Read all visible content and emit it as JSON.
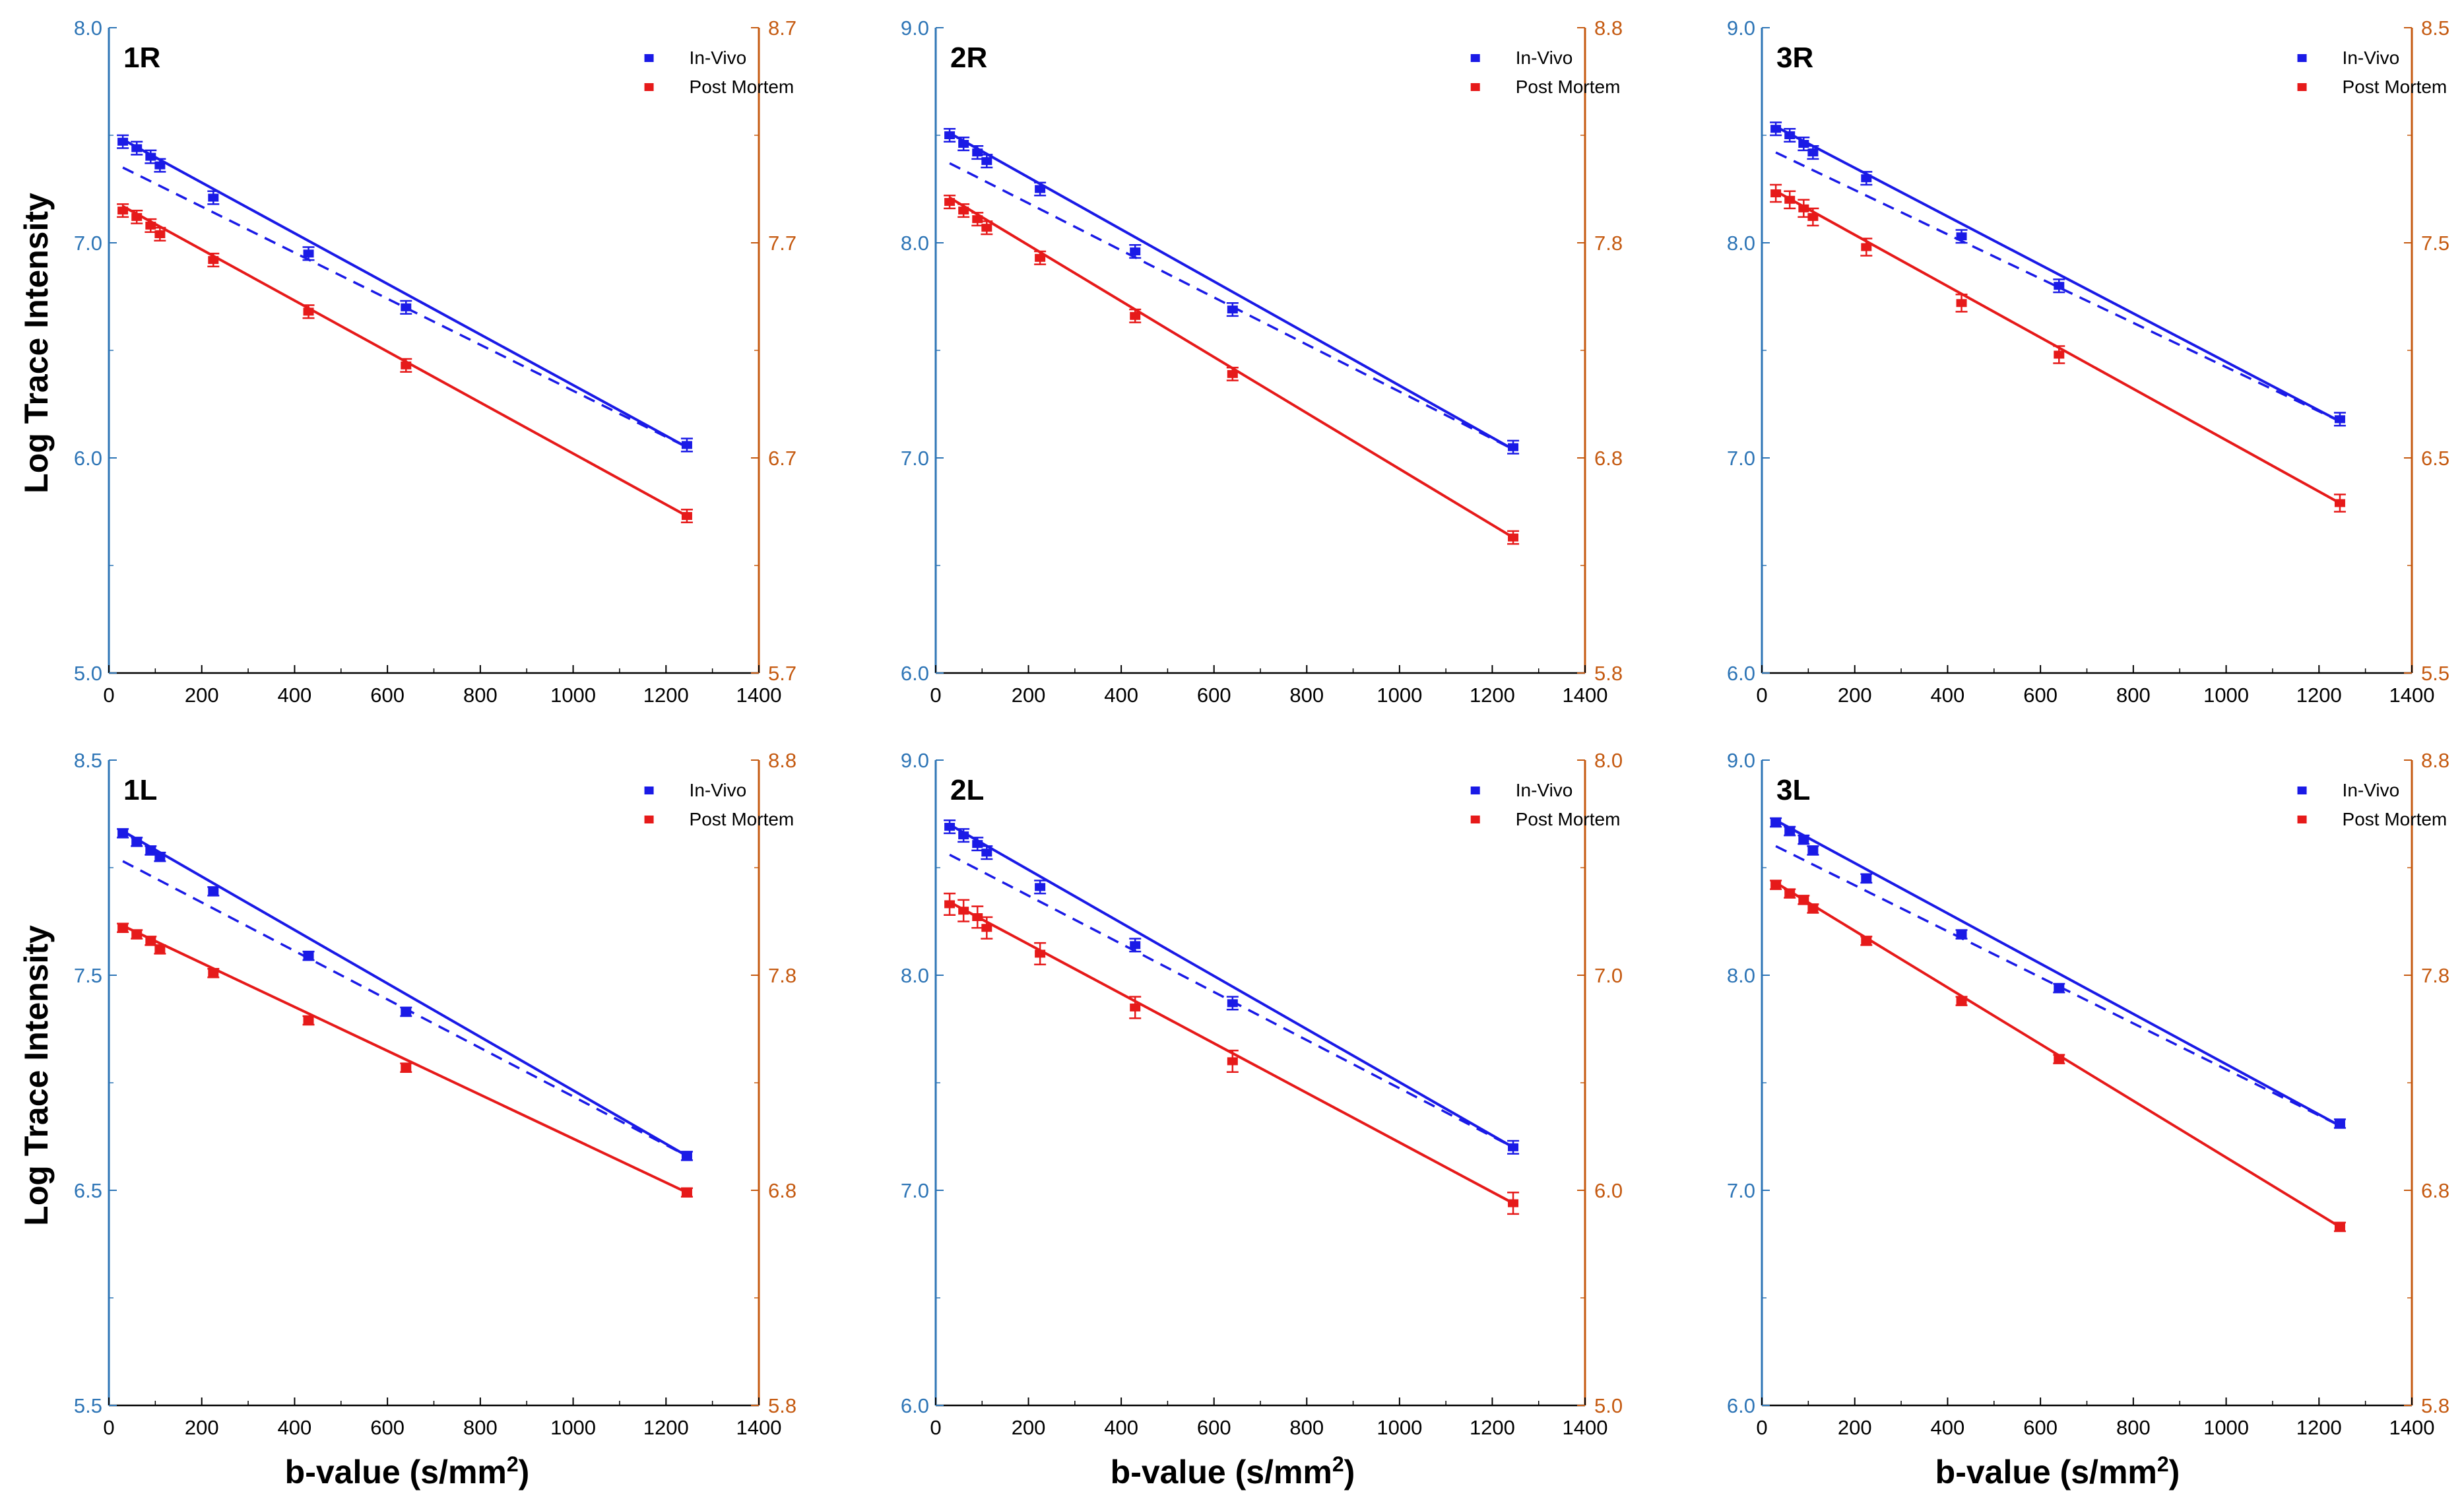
{
  "colors": {
    "in_vivo": "#1a1ae6",
    "post_mortem": "#e61a1a",
    "left_axis": "#2e75b6",
    "right_axis": "#c55a11"
  },
  "figure": {
    "ylabel": "Log Trace Intensity",
    "xlabel_main": "b-value (s/mm",
    "xlabel_sup": "2",
    "xlabel_tail": ")"
  },
  "chart_data": [
    {
      "type": "line",
      "label": "1R",
      "x": [
        30,
        60,
        90,
        110,
        225,
        430,
        640,
        1245
      ],
      "xlim": [
        0,
        1400
      ],
      "xticks": [
        "0",
        "200",
        "400",
        "600",
        "800",
        "1000",
        "1200",
        "1400"
      ],
      "ylim": [
        5.0,
        8.0
      ],
      "yticks": [
        "5.0",
        "6.0",
        "7.0",
        "8.0"
      ],
      "ylim_right": [
        5.7,
        8.7
      ],
      "yticks_right": [
        "5.7",
        "6.7",
        "7.7",
        "8.7"
      ],
      "legend": [
        "In-Vivo",
        "Post Mortem"
      ],
      "series": [
        {
          "name": "In-Vivo",
          "axis": "left",
          "values": [
            7.47,
            7.44,
            7.4,
            7.36,
            7.21,
            6.95,
            6.7,
            6.06
          ],
          "err": 0.03,
          "fit": [
            [
              30,
              7.48
            ],
            [
              1245,
              6.05
            ]
          ],
          "fit_dashed": [
            [
              30,
              7.35
            ],
            [
              1245,
              6.05
            ]
          ]
        },
        {
          "name": "Post Mortem",
          "axis": "right",
          "values": [
            7.85,
            7.82,
            7.78,
            7.74,
            7.62,
            7.38,
            7.13,
            6.43
          ],
          "err": 0.03,
          "fit": [
            [
              30,
              7.87
            ],
            [
              1245,
              6.43
            ]
          ]
        }
      ]
    },
    {
      "type": "line",
      "label": "2R",
      "x": [
        30,
        60,
        90,
        110,
        225,
        430,
        640,
        1245
      ],
      "xlim": [
        0,
        1400
      ],
      "xticks": [
        "0",
        "200",
        "400",
        "600",
        "800",
        "1000",
        "1200",
        "1400"
      ],
      "ylim": [
        6.0,
        9.0
      ],
      "yticks": [
        "6.0",
        "7.0",
        "8.0",
        "9.0"
      ],
      "ylim_right": [
        5.8,
        8.8
      ],
      "yticks_right": [
        "5.8",
        "6.8",
        "7.8",
        "8.8"
      ],
      "legend": [
        "In-Vivo",
        "Post Mortem"
      ],
      "series": [
        {
          "name": "In-Vivo",
          "axis": "left",
          "values": [
            8.5,
            8.46,
            8.42,
            8.38,
            8.25,
            7.96,
            7.69,
            7.05
          ],
          "err": 0.03,
          "fit": [
            [
              30,
              8.51
            ],
            [
              1245,
              7.04
            ]
          ],
          "fit_dashed": [
            [
              30,
              8.37
            ],
            [
              1245,
              7.04
            ]
          ]
        },
        {
          "name": "Post Mortem",
          "axis": "right",
          "values": [
            7.99,
            7.95,
            7.91,
            7.87,
            7.73,
            7.46,
            7.19,
            6.43
          ],
          "err": 0.03,
          "fit": [
            [
              30,
              8.01
            ],
            [
              1245,
              6.43
            ]
          ]
        }
      ]
    },
    {
      "type": "line",
      "label": "3R",
      "x": [
        30,
        60,
        90,
        110,
        225,
        430,
        640,
        1245
      ],
      "xlim": [
        0,
        1400
      ],
      "xticks": [
        "0",
        "200",
        "400",
        "600",
        "800",
        "1000",
        "1200",
        "1400"
      ],
      "ylim": [
        6.0,
        9.0
      ],
      "yticks": [
        "6.0",
        "7.0",
        "8.0",
        "9.0"
      ],
      "ylim_right": [
        5.5,
        8.5
      ],
      "yticks_right": [
        "5.5",
        "6.5",
        "7.5",
        "8.5"
      ],
      "legend": [
        "In-Vivo",
        "Post Mortem"
      ],
      "series": [
        {
          "name": "In-Vivo",
          "axis": "left",
          "values": [
            8.53,
            8.5,
            8.46,
            8.42,
            8.3,
            8.03,
            7.8,
            7.18
          ],
          "err": 0.03,
          "fit": [
            [
              30,
              8.54
            ],
            [
              1245,
              7.17
            ]
          ],
          "fit_dashed": [
            [
              30,
              8.42
            ],
            [
              1245,
              7.17
            ]
          ]
        },
        {
          "name": "Post Mortem",
          "axis": "right",
          "values": [
            7.73,
            7.7,
            7.66,
            7.62,
            7.48,
            7.22,
            6.98,
            6.29
          ],
          "err": 0.04,
          "fit": [
            [
              30,
              7.74
            ],
            [
              1245,
              6.29
            ]
          ]
        }
      ]
    },
    {
      "type": "line",
      "label": "1L",
      "x": [
        30,
        60,
        90,
        110,
        225,
        430,
        640,
        1245
      ],
      "xlim": [
        0,
        1400
      ],
      "xticks": [
        "0",
        "200",
        "400",
        "600",
        "800",
        "1000",
        "1200",
        "1400"
      ],
      "ylim": [
        5.5,
        8.5
      ],
      "yticks": [
        "5.5",
        "6.5",
        "7.5",
        "8.5"
      ],
      "ylim_right": [
        5.8,
        8.8
      ],
      "yticks_right": [
        "5.8",
        "6.8",
        "7.8",
        "8.8"
      ],
      "legend": [
        "In-Vivo",
        "Post Mortem"
      ],
      "series": [
        {
          "name": "In-Vivo",
          "axis": "left",
          "values": [
            8.16,
            8.12,
            8.08,
            8.05,
            7.89,
            7.59,
            7.33,
            6.66
          ],
          "err": 0.02,
          "fit": [
            [
              30,
              8.17
            ],
            [
              1245,
              6.66
            ]
          ],
          "fit_dashed": [
            [
              30,
              8.03
            ],
            [
              1245,
              6.66
            ]
          ]
        },
        {
          "name": "Post Mortem",
          "axis": "right",
          "values": [
            8.02,
            7.99,
            7.96,
            7.92,
            7.81,
            7.59,
            7.37,
            6.79
          ],
          "err": 0.02,
          "fit": [
            [
              30,
              8.03
            ],
            [
              1245,
              6.79
            ]
          ]
        }
      ]
    },
    {
      "type": "line",
      "label": "2L",
      "x": [
        30,
        60,
        90,
        110,
        225,
        430,
        640,
        1245
      ],
      "xlim": [
        0,
        1400
      ],
      "xticks": [
        "0",
        "200",
        "400",
        "600",
        "800",
        "1000",
        "1200",
        "1400"
      ],
      "ylim": [
        6.0,
        9.0
      ],
      "yticks": [
        "6.0",
        "7.0",
        "8.0",
        "9.0"
      ],
      "ylim_right": [
        5.0,
        8.0
      ],
      "yticks_right": [
        "5.0",
        "6.0",
        "7.0",
        "8.0"
      ],
      "legend": [
        "In-Vivo",
        "Post Mortem"
      ],
      "series": [
        {
          "name": "In-Vivo",
          "axis": "left",
          "values": [
            8.69,
            8.65,
            8.61,
            8.57,
            8.41,
            8.14,
            7.87,
            7.2
          ],
          "err": 0.03,
          "fit": [
            [
              30,
              8.7
            ],
            [
              1245,
              7.2
            ]
          ],
          "fit_dashed": [
            [
              30,
              8.56
            ],
            [
              1245,
              7.2
            ]
          ]
        },
        {
          "name": "Post Mortem",
          "axis": "right",
          "values": [
            7.33,
            7.3,
            7.27,
            7.22,
            7.1,
            6.85,
            6.6,
            5.94
          ],
          "err": 0.05,
          "fit": [
            [
              30,
              7.34
            ],
            [
              1245,
              5.94
            ]
          ]
        }
      ]
    },
    {
      "type": "line",
      "label": "3L",
      "x": [
        30,
        60,
        90,
        110,
        225,
        430,
        640,
        1245
      ],
      "xlim": [
        0,
        1400
      ],
      "xticks": [
        "0",
        "200",
        "400",
        "600",
        "800",
        "1000",
        "1200",
        "1400"
      ],
      "ylim": [
        6.0,
        9.0
      ],
      "yticks": [
        "6.0",
        "7.0",
        "8.0",
        "9.0"
      ],
      "ylim_right": [
        5.8,
        8.8
      ],
      "yticks_right": [
        "5.8",
        "6.8",
        "7.8",
        "8.8"
      ],
      "legend": [
        "In-Vivo",
        "Post Mortem"
      ],
      "series": [
        {
          "name": "In-Vivo",
          "axis": "left",
          "values": [
            8.71,
            8.67,
            8.63,
            8.58,
            8.45,
            8.19,
            7.94,
            7.31
          ],
          "err": 0.02,
          "fit": [
            [
              30,
              8.72
            ],
            [
              1245,
              7.3
            ]
          ],
          "fit_dashed": [
            [
              30,
              8.6
            ],
            [
              1245,
              7.3
            ]
          ]
        },
        {
          "name": "Post Mortem",
          "axis": "right",
          "values": [
            8.22,
            8.18,
            8.15,
            8.11,
            7.96,
            7.68,
            7.41,
            6.63
          ],
          "err": 0.02,
          "fit": [
            [
              30,
              8.23
            ],
            [
              1245,
              6.63
            ]
          ]
        }
      ]
    }
  ]
}
